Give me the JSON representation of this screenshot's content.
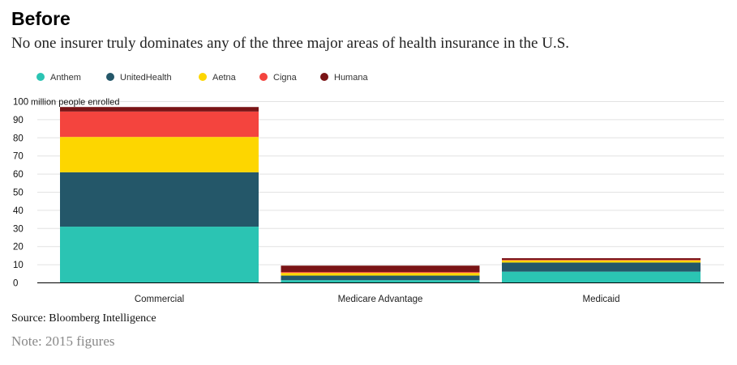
{
  "header": {
    "title": "Before",
    "subtitle": "No one insurer truly dominates any of the three major areas of health insurance in the U.S."
  },
  "footer": {
    "source": "Source: Bloomberg Intelligence",
    "note": "Note: 2015 figures"
  },
  "chart_data": {
    "type": "bar",
    "stacked": true,
    "categories": [
      "Commercial",
      "Medicare Advantage",
      "Medicaid"
    ],
    "series": [
      {
        "name": "Anthem",
        "color": "#2bc4b3",
        "values": [
          31,
          1.5,
          6.2
        ]
      },
      {
        "name": "UnitedHealth",
        "color": "#245769",
        "values": [
          30,
          2.5,
          5.0
        ]
      },
      {
        "name": "Aetna",
        "color": "#fdd600",
        "values": [
          19.5,
          1.5,
          1.2
        ]
      },
      {
        "name": "Cigna",
        "color": "#f4443e",
        "values": [
          14,
          0.5,
          0.3
        ]
      },
      {
        "name": "Humana",
        "color": "#7a1416",
        "values": [
          2.5,
          3.5,
          0.9
        ]
      }
    ],
    "ylim": [
      0,
      100
    ],
    "yticks": [
      "0",
      "10",
      "20",
      "30",
      "40",
      "50",
      "60",
      "70",
      "80",
      "90",
      "100"
    ],
    "ytick_values": [
      0,
      10,
      20,
      30,
      40,
      50,
      60,
      70,
      80,
      90,
      100
    ],
    "top_tick_unit": "million people enrolled",
    "grid": true,
    "legend_position": "top-left"
  }
}
